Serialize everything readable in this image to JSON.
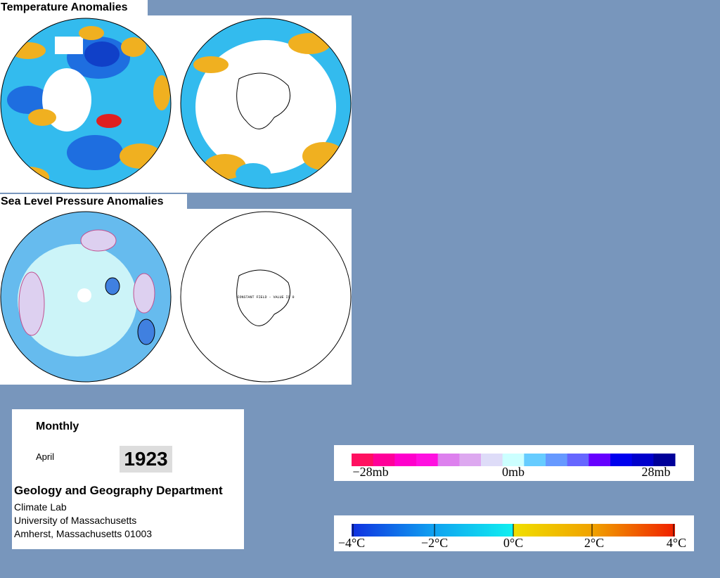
{
  "panels": {
    "temperature_title": "Temperature Anomalies",
    "pressure_title": "Sea Level Pressure Anomalies",
    "constant_field_note": "CONSTANT FIELD - VALUE IS 0"
  },
  "info": {
    "period": "Monthly",
    "month": "April",
    "year": "1923",
    "department": "Geology and Geography Department",
    "lines": [
      "Climate Lab",
      "University of Massachusetts",
      "Amherst, Massachusetts 01003"
    ]
  },
  "legends": {
    "pressure": {
      "labels": [
        "−28mb",
        "0mb",
        "28mb"
      ]
    },
    "temperature": {
      "labels": [
        "−4°C",
        "−2°C",
        "0°C",
        "2°C",
        "4°C"
      ]
    }
  }
}
